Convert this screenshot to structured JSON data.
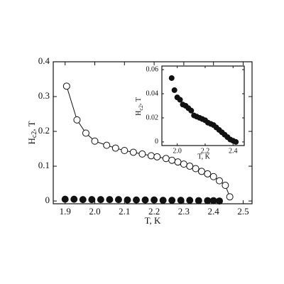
{
  "chart_data": [
    {
      "type": "scatter",
      "xlabel": "T, K",
      "ylabel": [
        "H",
        "c2",
        ", T"
      ],
      "xlim": [
        1.86,
        2.53
      ],
      "ylim": [
        -0.008,
        0.4
      ],
      "xticks": [
        1.9,
        {
          "value": 2,
          "label": "2.0"
        },
        2.1,
        2.2,
        2.3,
        2.4,
        2.5
      ],
      "yticks": [
        0,
        0.1,
        0.2,
        0.3,
        0.4
      ],
      "series": [
        {
          "color": "#111",
          "marker": "open",
          "line": true,
          "x": [
            1.905,
            1.94,
            1.97,
            2.0,
            2.04,
            2.07,
            2.1,
            2.13,
            2.16,
            2.19,
            2.21,
            2.24,
            2.26,
            2.28,
            2.3,
            2.32,
            2.34,
            2.36,
            2.38,
            2.4,
            2.42,
            2.44,
            2.455
          ],
          "values": [
            0.33,
            0.233,
            0.195,
            0.172,
            0.16,
            0.152,
            0.145,
            0.14,
            0.135,
            0.13,
            0.127,
            0.122,
            0.117,
            0.112,
            0.106,
            0.1,
            0.093,
            0.085,
            0.078,
            0.07,
            0.058,
            0.045,
            0.012
          ]
        },
        {
          "color": "#111",
          "marker": "filled",
          "line": false,
          "x": [
            1.9,
            1.93,
            1.96,
            1.99,
            2.02,
            2.05,
            2.08,
            2.11,
            2.14,
            2.17,
            2.2,
            2.23,
            2.26,
            2.29,
            2.32,
            2.35,
            2.38,
            2.4,
            2.42
          ],
          "values": [
            0.005,
            0.005,
            0.004,
            0.004,
            0.004,
            0.004,
            0.004,
            0.003,
            0.003,
            0.003,
            0.003,
            0.002,
            0.002,
            0.002,
            0.002,
            0.001,
            0.001,
            0.001,
            0.0
          ]
        }
      ]
    },
    {
      "type": "scatter",
      "xlabel": "T, K",
      "ylabel": [
        "H",
        "c2",
        ", T"
      ],
      "xlim": [
        1.89,
        2.48
      ],
      "ylim": [
        -0.003,
        0.063
      ],
      "xticks": [
        {
          "value": 2,
          "label": "2.0"
        },
        2.2,
        2.4
      ],
      "yticks": [
        0,
        0.02,
        0.04,
        0.06
      ],
      "series": [
        {
          "color": "#111",
          "marker": "filled",
          "line": false,
          "x": [
            1.96,
            1.98,
            2.0,
            2.02,
            2.04,
            2.06,
            2.08,
            2.1,
            2.12,
            2.14,
            2.16,
            2.18,
            2.2,
            2.22,
            2.24,
            2.26,
            2.28,
            2.3,
            2.32,
            2.34,
            2.36,
            2.38,
            2.4,
            2.42
          ],
          "values": [
            0.053,
            0.043,
            0.037,
            0.035,
            0.031,
            0.03,
            0.028,
            0.026,
            0.022,
            0.021,
            0.02,
            0.019,
            0.018,
            0.016,
            0.015,
            0.014,
            0.012,
            0.01,
            0.008,
            0.006,
            0.004,
            0.002,
            0.001,
            0.0
          ]
        }
      ]
    }
  ]
}
